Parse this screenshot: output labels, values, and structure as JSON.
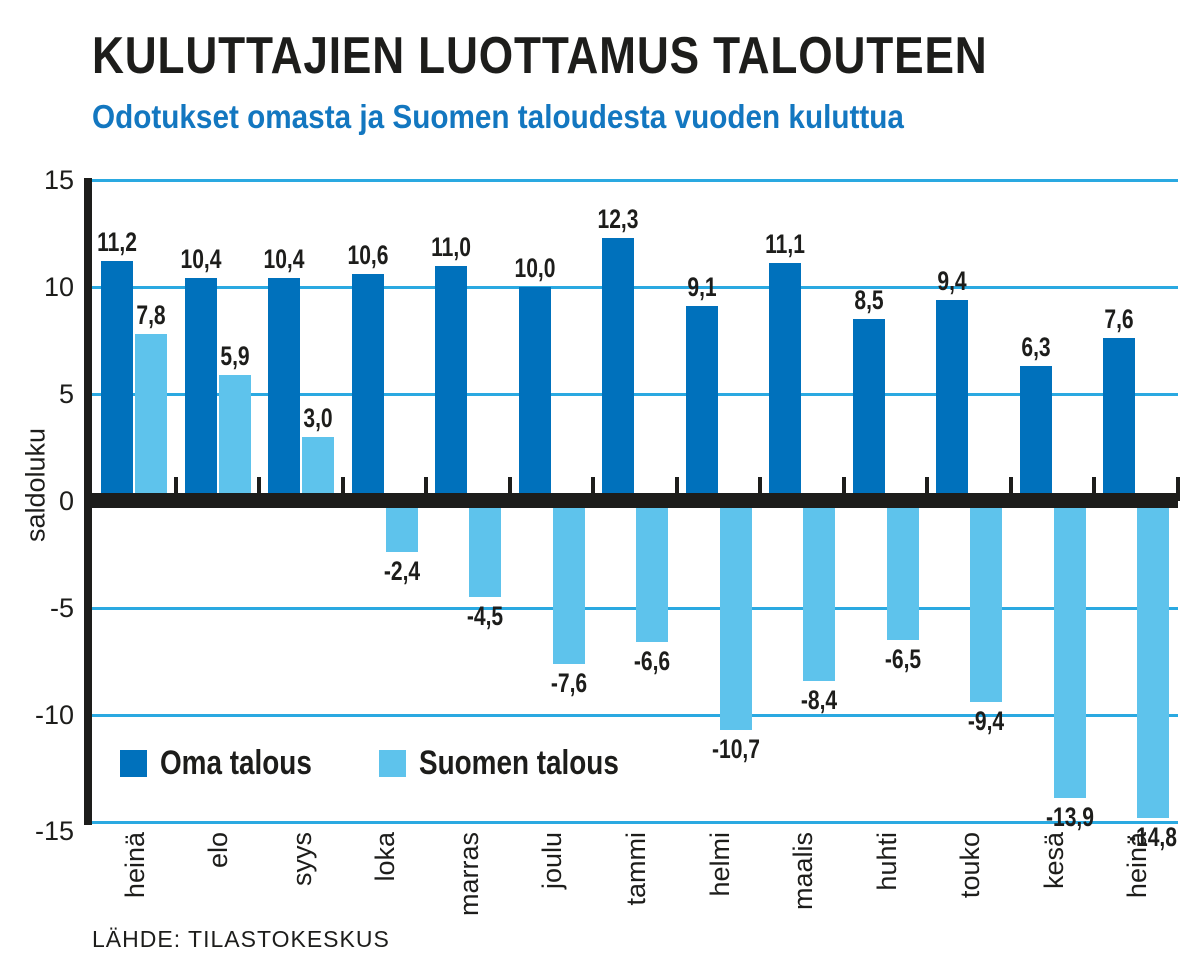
{
  "header": {
    "title": "KULUTTAJIEN LUOTTAMUS TALOUTEEN",
    "subtitle": "Odotukset omasta ja Suomen taloudesta vuoden kuluttua"
  },
  "source": "LÄHDE: TILASTOKESKUS",
  "colors": {
    "title_text": "#1d1d1b",
    "subtitle_text": "#1377c0",
    "dark_series": "#0071bc",
    "light_series": "#5ec3ec",
    "gridline": "#2aa9e1",
    "axis": "#1d1d1b",
    "background": "#ffffff"
  },
  "chart_data": {
    "type": "bar",
    "title": "KULUTTAJIEN LUOTTAMUS TALOUTEEN",
    "subtitle": "Odotukset omasta ja Suomen taloudesta vuoden kuluttua",
    "xlabel": "",
    "ylabel": "saldoluku",
    "ylim": [
      -15,
      15
    ],
    "yticks": [
      15,
      10,
      5,
      0,
      -5,
      -10,
      -15
    ],
    "grid": true,
    "legend_position": "bottom-left-inside",
    "decimal_separator": ",",
    "categories": [
      "heinä",
      "elo",
      "syys",
      "loka",
      "marras",
      "joulu",
      "tammi",
      "helmi",
      "maalis",
      "huhti",
      "touko",
      "kesä",
      "heinä"
    ],
    "series": [
      {
        "name": "Oma talous",
        "color": "#0071bc",
        "values": [
          11.2,
          10.4,
          10.4,
          10.6,
          11.0,
          10.0,
          12.3,
          9.1,
          11.1,
          8.5,
          9.4,
          6.3,
          7.6
        ]
      },
      {
        "name": "Suomen talous",
        "color": "#5ec3ec",
        "values": [
          7.8,
          5.9,
          3.0,
          -2.4,
          -4.5,
          -7.6,
          -6.6,
          -10.7,
          -8.4,
          -6.5,
          -9.4,
          -13.9,
          -14.8
        ]
      }
    ]
  }
}
